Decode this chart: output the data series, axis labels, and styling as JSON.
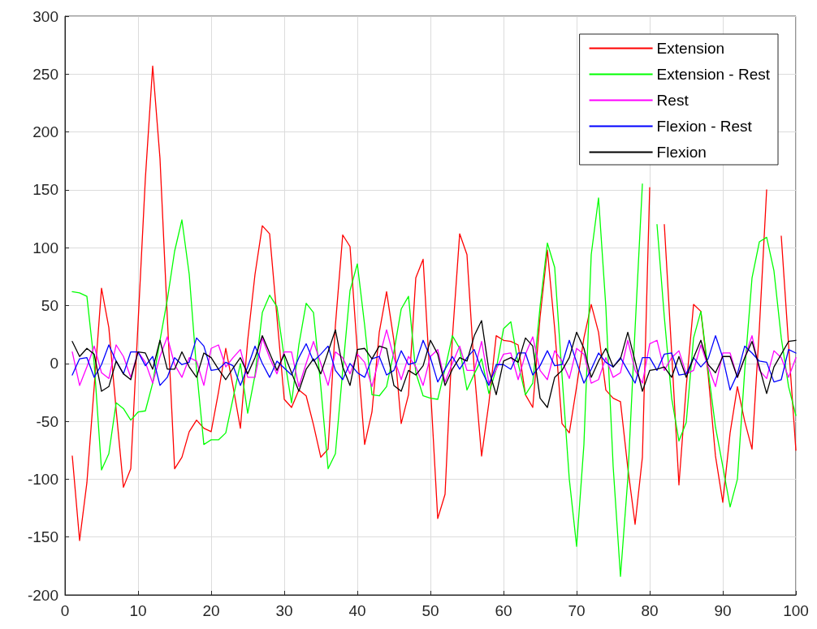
{
  "chart_data": {
    "type": "line",
    "xlim": [
      0,
      100
    ],
    "xticks": [
      0,
      10,
      20,
      30,
      40,
      50,
      60,
      70,
      80,
      90,
      100
    ],
    "ylim": [
      -200,
      300
    ],
    "yticks": [
      -200,
      -150,
      -100,
      -50,
      0,
      50,
      100,
      150,
      200,
      250,
      300
    ],
    "grid": true,
    "legend": "top right",
    "marker": "none",
    "line_style": "solid",
    "x": [
      1,
      2,
      3,
      4,
      5,
      6,
      7,
      8,
      9,
      10,
      11,
      12,
      13,
      14,
      15,
      16,
      17,
      18,
      19,
      20,
      21,
      22,
      23,
      24,
      25,
      26,
      27,
      28,
      29,
      30,
      31,
      32,
      33,
      34,
      35,
      36,
      37,
      38,
      39,
      40,
      41,
      42,
      43,
      44,
      45,
      46,
      47,
      48,
      49,
      50,
      51,
      52,
      53,
      54,
      55,
      56,
      57,
      58,
      59,
      60,
      61,
      62,
      63,
      64,
      65,
      66,
      67,
      68,
      69,
      70,
      71,
      72,
      73,
      74,
      75,
      76,
      77,
      78,
      79,
      80,
      81,
      82,
      83,
      84,
      85,
      86,
      87,
      88,
      89,
      90,
      91,
      92,
      93,
      94,
      95,
      96,
      97,
      98,
      99,
      100
    ],
    "series": [
      {
        "name": "Extension",
        "color": "#ff0000",
        "values": [
          -80,
          -153,
          -103,
          -20,
          65,
          31,
          -40,
          -107,
          -91,
          35,
          160,
          257,
          177,
          40,
          -91,
          -81,
          -59,
          -49,
          -56,
          -59,
          -25,
          13,
          -20,
          -56,
          20,
          77,
          119,
          112,
          40,
          -31,
          -38,
          -23,
          -28,
          -53,
          -81,
          -74,
          33,
          111,
          101,
          10,
          -70,
          -42,
          27,
          62,
          20,
          -52,
          -27,
          74,
          90,
          -20,
          -134,
          -113,
          22,
          112,
          94,
          -6,
          -80,
          -34,
          24,
          20,
          19,
          16,
          -27,
          -38,
          40,
          98,
          30,
          -52,
          -60,
          -20,
          22,
          51,
          27,
          -23,
          -30,
          -33,
          -90,
          -139,
          -81,
          152,
          null,
          120,
          10,
          -105,
          -20,
          51,
          45,
          -10,
          -80,
          -120,
          -60,
          -20,
          -50,
          -74,
          30,
          150,
          null,
          110,
          16,
          -75
        ]
      },
      {
        "name": "Extension - Rest",
        "color": "#00ff00",
        "values": [
          62,
          61,
          58,
          0,
          -92,
          -78,
          -34,
          -39,
          -49,
          -42,
          -41,
          -17,
          20,
          55,
          97,
          124,
          77,
          -5,
          -70,
          -66,
          -66,
          -60,
          -30,
          0,
          -43,
          -10,
          44,
          59,
          49,
          5,
          -34,
          16,
          52,
          44,
          -20,
          -91,
          -78,
          -6,
          63,
          86,
          33,
          -27,
          -28,
          -20,
          10,
          47,
          58,
          -8,
          -28,
          -30,
          -31,
          -5,
          24,
          13,
          -23,
          -9,
          4,
          -26,
          -5,
          30,
          36,
          0,
          -27,
          -17,
          49,
          104,
          83,
          -10,
          -100,
          -158,
          -70,
          94,
          143,
          49,
          -89,
          -184,
          -100,
          30,
          155,
          null,
          120,
          40,
          -30,
          -67,
          -51,
          22,
          45,
          -6,
          -55,
          -89,
          -124,
          -100,
          -6,
          74,
          105,
          109,
          80,
          22,
          -20,
          -45
        ]
      },
      {
        "name": "Rest",
        "color": "#ff00ff",
        "values": [
          10,
          -19,
          -3,
          15,
          -8,
          -13,
          16,
          6,
          -12,
          10,
          1,
          -17,
          6,
          23,
          -1,
          -12,
          5,
          2,
          -19,
          13,
          16,
          -3,
          5,
          12,
          -12,
          -12,
          22,
          5,
          -9,
          10,
          10,
          -20,
          0,
          19,
          0,
          -19,
          10,
          5,
          -9,
          8,
          1,
          -20,
          5,
          29,
          5,
          -14,
          6,
          -3,
          -19,
          6,
          12,
          -16,
          0,
          15,
          -6,
          -6,
          19,
          -17,
          -5,
          8,
          9,
          -14,
          8,
          23,
          -6,
          -14,
          11,
          2,
          -13,
          13,
          8,
          -17,
          -14,
          5,
          -12,
          -8,
          20,
          -6,
          -17,
          17,
          20,
          -6,
          5,
          11,
          -9,
          -6,
          16,
          -3,
          -20,
          9,
          9,
          -12,
          5,
          24,
          -6,
          -13,
          11,
          5,
          -12,
          5
        ]
      },
      {
        "name": "Flexion - Rest",
        "color": "#0000ff",
        "values": [
          -10,
          4,
          5,
          -12,
          -1,
          16,
          2,
          -9,
          10,
          10,
          -2,
          6,
          -19,
          -12,
          5,
          -1,
          1,
          22,
          15,
          -6,
          -5,
          1,
          -2,
          -19,
          -3,
          15,
          0,
          -12,
          2,
          -4,
          -10,
          5,
          17,
          2,
          8,
          15,
          -6,
          -14,
          0,
          -8,
          -12,
          4,
          6,
          -10,
          -6,
          11,
          -1,
          1,
          20,
          5,
          -16,
          -5,
          6,
          -5,
          5,
          12,
          -6,
          -19,
          -1,
          -1,
          -5,
          9,
          9,
          -10,
          -2,
          11,
          -2,
          -1,
          20,
          1,
          -17,
          -5,
          9,
          1,
          -3,
          5,
          -6,
          -17,
          5,
          5,
          -6,
          8,
          9,
          -10,
          -9,
          5,
          -3,
          4,
          24,
          5,
          -23,
          -9,
          15,
          9,
          2,
          1,
          -16,
          -14,
          12,
          9
        ]
      },
      {
        "name": "Flexion",
        "color": "#000000",
        "values": [
          19,
          6,
          13,
          8,
          -24,
          -20,
          2,
          -9,
          -14,
          10,
          9,
          -5,
          20,
          -5,
          -5,
          10,
          -3,
          -12,
          9,
          5,
          -5,
          -14,
          -4,
          5,
          -9,
          5,
          24,
          9,
          -6,
          8,
          -8,
          -24,
          -5,
          4,
          -9,
          10,
          29,
          -3,
          -19,
          12,
          13,
          4,
          15,
          13,
          -19,
          -24,
          -6,
          -10,
          -2,
          20,
          8,
          -19,
          -5,
          5,
          2,
          24,
          37,
          -6,
          -27,
          2,
          5,
          1,
          22,
          15,
          -30,
          -38,
          -12,
          -6,
          5,
          27,
          13,
          -12,
          2,
          13,
          -3,
          4,
          27,
          2,
          -24,
          -6,
          -5,
          -3,
          -12,
          6,
          -12,
          5,
          20,
          -1,
          -8,
          6,
          6,
          -12,
          5,
          19,
          -3,
          -26,
          -3,
          8,
          19,
          20
        ]
      }
    ]
  }
}
